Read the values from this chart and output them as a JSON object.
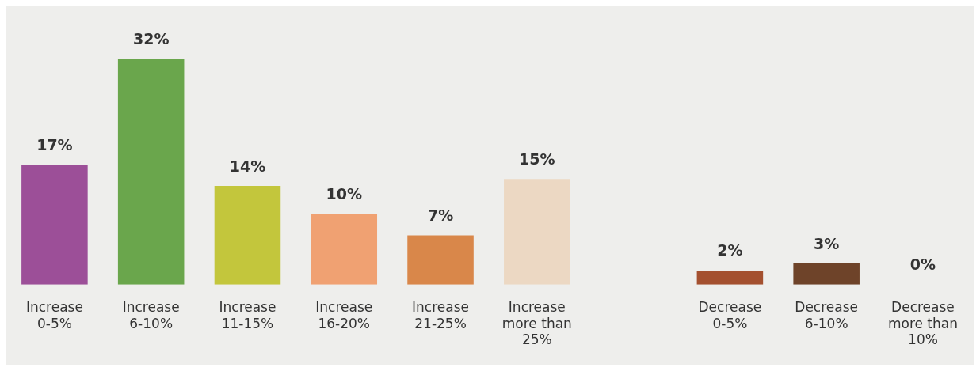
{
  "chart_data": {
    "type": "bar",
    "categories": [
      "Increase 0-5%",
      "Increase 6-10%",
      "Increase 11-15%",
      "Increase 16-20%",
      "Increase 21-25%",
      "Increase more than 25%",
      null,
      "Decrease 0-5%",
      "Decrease 6-10%",
      "Decrease more than 10%"
    ],
    "values": [
      17,
      32,
      14,
      10,
      7,
      15,
      null,
      2,
      3,
      0
    ],
    "colors": [
      "#9c4f98",
      "#6aa64c",
      "#c3c63c",
      "#f0a172",
      "#d9874a",
      "#ecd8c3",
      "#eeeeec",
      "#a4502f",
      "#6e4329",
      "#6e4329"
    ],
    "value_labels": [
      "17%",
      "32%",
      "14%",
      "10%",
      "7%",
      "15%",
      null,
      "2%",
      "3%",
      "0%"
    ],
    "grid": false,
    "legend": false
  }
}
